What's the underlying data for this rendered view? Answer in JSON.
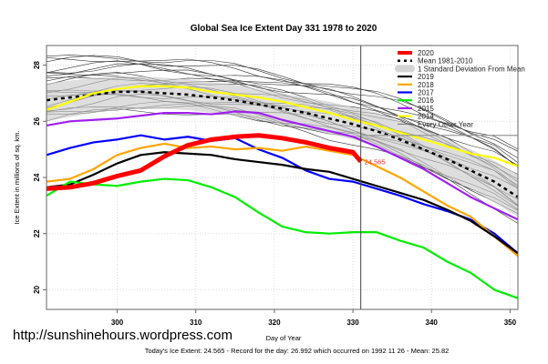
{
  "chart_data": {
    "type": "line",
    "title": "Global Sea Ice Extent Day 331 1978 to 2020",
    "xlabel": "Day of Year",
    "ylabel": "Ice Extent in millions of sq. km.",
    "xlim": [
      291,
      351
    ],
    "ylim": [
      19.3,
      28.7
    ],
    "xticks": [
      300,
      310,
      320,
      330,
      340,
      350
    ],
    "yticks": [
      20,
      22,
      24,
      26,
      28
    ],
    "grid": true,
    "legend_position": "top-right",
    "legend": [
      {
        "label": "2020",
        "color": "#ff0000",
        "style": "thick"
      },
      {
        "label": "Mean 1981-2010",
        "color": "#000000",
        "style": "dashed"
      },
      {
        "label": "1 Standard Deviation From Mean",
        "color": "#d3d3d3",
        "style": "band"
      },
      {
        "label": "2019",
        "color": "#000000",
        "style": "solid"
      },
      {
        "label": "2018",
        "color": "#ffa500",
        "style": "solid"
      },
      {
        "label": "2017",
        "color": "#0000ff",
        "style": "solid"
      },
      {
        "label": "2016",
        "color": "#00ee00",
        "style": "solid"
      },
      {
        "label": "2015",
        "color": "#a020f0",
        "style": "solid"
      },
      {
        "label": "2014",
        "color": "#ffff00",
        "style": "solid"
      },
      {
        "label": "Every Other Year",
        "color": "#555555",
        "style": "thin"
      }
    ],
    "current_day": 331,
    "current_value_label": "24.565",
    "reference_value": 25.5,
    "x": [
      291,
      294,
      297,
      300,
      303,
      306,
      309,
      312,
      315,
      318,
      321,
      324,
      327,
      330,
      333,
      336,
      339,
      342,
      345,
      348,
      351
    ],
    "mean": [
      26.75,
      26.85,
      26.95,
      27.05,
      27.05,
      27.0,
      26.95,
      26.85,
      26.75,
      26.6,
      26.45,
      26.3,
      26.1,
      25.9,
      25.65,
      25.35,
      25.0,
      24.65,
      24.25,
      23.85,
      23.3
    ],
    "std_band": {
      "upper": [
        27.35,
        27.45,
        27.55,
        27.6,
        27.6,
        27.55,
        27.5,
        27.4,
        27.3,
        27.15,
        27.0,
        26.85,
        26.7,
        26.5,
        26.3,
        26.0,
        25.7,
        25.35,
        25.0,
        24.6,
        24.1
      ],
      "lower": [
        26.0,
        26.15,
        26.3,
        26.4,
        26.45,
        26.45,
        26.4,
        26.3,
        26.2,
        26.05,
        25.9,
        25.75,
        25.55,
        25.35,
        25.1,
        24.75,
        24.4,
        24.0,
        23.6,
        23.1,
        22.6
      ]
    },
    "series": [
      {
        "name": "2014",
        "color": "#ffff00",
        "values": [
          26.4,
          26.7,
          27.0,
          27.15,
          27.25,
          27.25,
          27.2,
          27.05,
          26.95,
          26.85,
          26.7,
          26.5,
          26.3,
          26.05,
          25.85,
          25.6,
          25.35,
          25.1,
          24.85,
          24.7,
          24.4
        ]
      },
      {
        "name": "2015",
        "color": "#a020f0",
        "values": [
          25.85,
          26.0,
          26.05,
          26.1,
          26.2,
          26.3,
          26.3,
          26.25,
          26.35,
          26.3,
          26.05,
          25.85,
          25.65,
          25.45,
          25.1,
          24.7,
          24.3,
          23.8,
          23.3,
          22.9,
          22.5
        ]
      },
      {
        "name": "2017",
        "color": "#0000ff",
        "values": [
          24.8,
          25.05,
          25.25,
          25.35,
          25.5,
          25.35,
          25.45,
          25.3,
          25.4,
          25.0,
          24.7,
          24.25,
          23.95,
          23.85,
          23.6,
          23.35,
          23.05,
          22.8,
          22.5,
          22.0,
          21.3
        ]
      },
      {
        "name": "2018",
        "color": "#ffa500",
        "values": [
          23.85,
          23.95,
          24.3,
          24.8,
          25.05,
          25.2,
          25.05,
          25.1,
          25.0,
          25.05,
          24.95,
          25.1,
          24.95,
          24.8,
          24.4,
          24.0,
          23.5,
          23.0,
          22.6,
          21.9,
          21.2
        ]
      },
      {
        "name": "2019",
        "color": "#000000",
        "values": [
          23.65,
          23.75,
          24.1,
          24.5,
          24.8,
          24.9,
          24.85,
          24.8,
          24.65,
          24.55,
          24.45,
          24.3,
          24.2,
          23.95,
          23.7,
          23.45,
          23.2,
          22.85,
          22.45,
          21.9,
          21.3
        ]
      },
      {
        "name": "2016",
        "color": "#00ee00",
        "values": [
          23.35,
          23.85,
          23.75,
          23.7,
          23.85,
          23.95,
          23.9,
          23.65,
          23.3,
          22.75,
          22.25,
          22.05,
          22.0,
          22.05,
          22.05,
          21.75,
          21.5,
          21.0,
          20.6,
          20.0,
          19.7
        ]
      },
      {
        "name": "2020",
        "color": "#ff0000",
        "values": [
          23.6,
          23.65,
          23.8,
          24.05,
          24.25,
          24.75,
          25.15,
          25.35,
          25.45,
          25.5,
          25.4,
          25.25,
          25.05,
          24.9,
          null,
          null,
          null,
          null,
          null,
          null,
          null
        ]
      }
    ],
    "series_2020_end": {
      "day": 331,
      "value": 24.565
    }
  },
  "watermark": "http://sunshinehours.wordpress.com",
  "footer": "Today's Ice Extent: 24.565  - Record for the day: 26.992 which occurred on 1992 11 26  - Mean: 25.82"
}
